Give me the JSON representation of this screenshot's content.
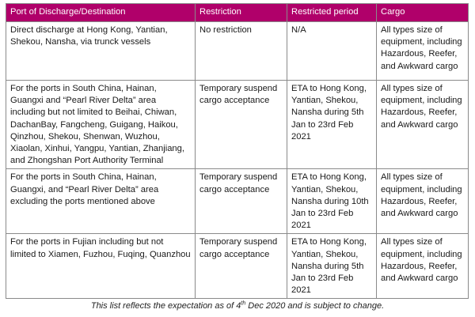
{
  "table": {
    "headers": [
      "Port of Discharge/Destination",
      "Restriction",
      "Restricted period",
      "Cargo"
    ],
    "rows": [
      [
        "Direct discharge at Hong Kong, Yantian, Shekou, Nansha, via trunck vessels",
        "No restriction",
        "N/A",
        "All types size of equipment, including Hazardous, Reefer, and Awkward cargo"
      ],
      [
        "For the ports in South China, Hainan, Guangxi and “Pearl River Delta” area including but not limited to Beihai, Chiwan, DachanBay, Fangcheng, Guigang, Haikou, Qinzhou, Shekou, Shenwan, Wuzhou, Xiaolan, Xinhui, Yangpu, Yantian, Zhanjiang, and Zhongshan Port Authority Terminal",
        "Temporary suspend cargo acceptance",
        "ETA to Hong Kong, Yantian, Shekou, Nansha during 5th Jan to 23rd Feb 2021",
        "All types size of equipment, including Hazardous, Reefer, and Awkward cargo"
      ],
      [
        "For the ports in South China, Hainan, Guangxi, and “Pearl River Delta” area excluding the ports mentioned above",
        "Temporary suspend cargo acceptance",
        "ETA to Hong Kong, Yantian, Shekou, Nansha during 10th Jan to 23rd Feb 2021",
        "All types size of equipment, including Hazardous, Reefer, and Awkward cargo"
      ],
      [
        "For the ports in Fujian including but not limited to Xiamen, Fuzhou, Fuqing, Quanzhou",
        "Temporary suspend cargo acceptance",
        "ETA to Hong Kong, Yantian, Shekou, Nansha during 5th Jan to 23rd Feb 2021",
        "All types size of equipment, including Hazardous, Reefer, and Awkward cargo"
      ]
    ]
  },
  "footnote": {
    "before": "This list reflects the expectation as of 4",
    "sup": "th",
    "after": " Dec 2020 and is subject to change."
  },
  "colors": {
    "header_bg": "#b0006a",
    "header_text": "#ffffff",
    "border": "#8a8a8a"
  }
}
